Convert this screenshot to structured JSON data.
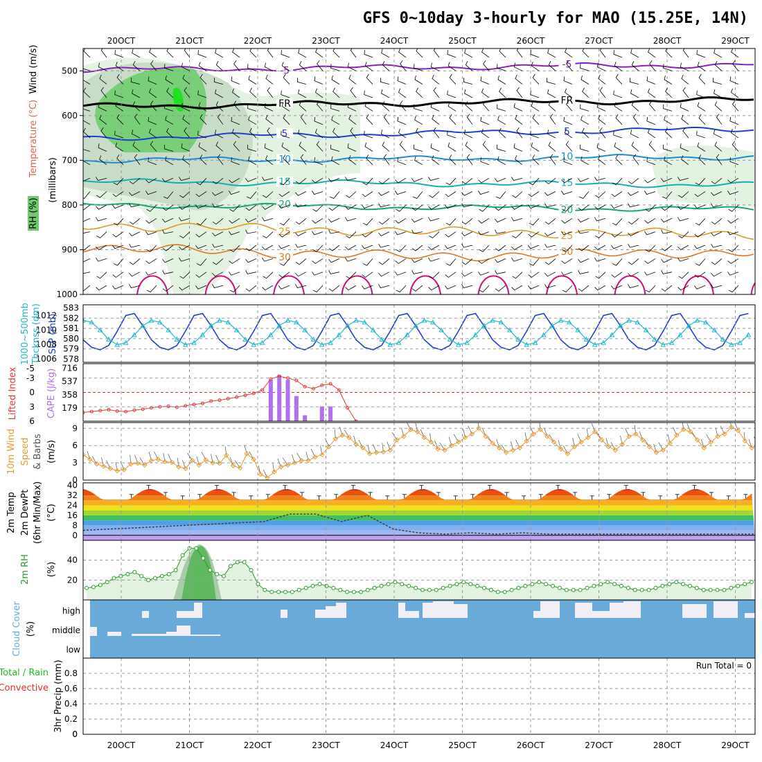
{
  "title": "GFS 0~10day 3-hourly for MAO (15.25E, 14N)",
  "colors": {
    "purple": "#8a1fbf",
    "black": "#000000",
    "blue": "#1f3fd0",
    "lightblue": "#1a8cd8",
    "teal": "#14b0b0",
    "green": "#10a878",
    "orange": "#e09a20",
    "darkorange": "#e07820",
    "magenta": "#d0107a",
    "slp": "#1f3fd0",
    "thk": "#20b8c8",
    "li": "#e03a3a",
    "cape": "#b070f0",
    "wind10": "#e89a30",
    "rh2m": "#2a9a2a",
    "cloud": "#6aaad8",
    "cloudgap": "#f2eef6",
    "precip_rain": "#20c020",
    "precip_conv": "#e03030"
  },
  "chart_data": [
    {
      "type": "contour",
      "panel": "cross-section",
      "x_categories": [
        "20OCT",
        "21OCT",
        "22OCT",
        "23OCT",
        "24OCT",
        "25OCT",
        "26OCT",
        "27OCT",
        "28OCT",
        "29OCT"
      ],
      "ylabel": [
        "RH (%)",
        "Temperature (°C)",
        "Wind (m/s)",
        "(millibars)"
      ],
      "y_ticks": [
        500,
        600,
        700,
        800,
        900,
        1000
      ],
      "ylim": [
        1000,
        450
      ],
      "isotherms": [
        {
          "label": "-5",
          "p": [
            498,
            492,
            486
          ]
        },
        {
          "label": "FR",
          "p": [
            580,
            572,
            565
          ]
        },
        {
          "label": "5",
          "p": [
            650,
            640,
            630
          ]
        },
        {
          "label": "10",
          "p": [
            700,
            697,
            692
          ]
        },
        {
          "label": "15",
          "p": [
            748,
            752,
            755
          ]
        },
        {
          "label": "20",
          "p": [
            800,
            805,
            810
          ]
        },
        {
          "label": "25",
          "p": [
            845,
            860,
            865
          ]
        },
        {
          "label": "30",
          "p": [
            895,
            915,
            905
          ]
        }
      ],
      "rh_legend": "RH (%)"
    },
    {
      "type": "line",
      "panel": "slp-thickness",
      "ylabel_left": [
        "1000~500mb",
        "Thcknss (dm)"
      ],
      "ylabel_right": "SLP (mb)",
      "left_ticks": [
        578,
        579,
        580,
        581,
        582,
        583
      ],
      "right_ticks": [
        1006,
        1008,
        1010,
        1012
      ],
      "series": [
        {
          "name": "SLP",
          "axis": "right"
        },
        {
          "name": "Thickness",
          "axis": "left"
        }
      ]
    },
    {
      "type": "bar",
      "panel": "cape-li",
      "ylabel_left": "Lifted Index",
      "ylabel_right": "CAPE (J/kg)",
      "left_ticks": [
        "-5",
        "-3",
        "0",
        "3",
        "6"
      ],
      "right_ticks": [
        "716",
        "537",
        "358",
        "179"
      ],
      "cape_values": [
        0,
        0,
        0,
        0,
        0,
        0,
        0,
        0,
        0,
        0,
        0,
        0,
        0,
        0,
        0,
        0,
        0,
        0,
        0,
        0,
        0,
        0,
        560,
        620,
        560,
        340,
        80,
        0,
        200,
        200,
        0,
        0,
        0,
        0,
        0,
        0,
        0,
        0,
        0,
        0,
        0,
        0,
        0,
        0,
        0,
        0,
        0,
        0,
        0,
        0,
        0,
        0,
        0,
        0,
        0,
        0,
        0,
        0,
        0,
        0,
        0,
        0,
        0,
        0,
        0,
        0,
        0,
        0,
        0,
        0,
        0,
        0,
        0,
        0,
        0,
        0,
        0,
        0,
        0,
        0,
        0
      ],
      "li_values": [
        4.2,
        4.0,
        3.8,
        3.6,
        3.9,
        4.0,
        3.7,
        3.5,
        3.2,
        3.0,
        2.9,
        3.1,
        2.8,
        2.5,
        2.3,
        1.8,
        1.6,
        1.3,
        1.0,
        0.6,
        0.2,
        -0.5,
        -2.8,
        -3.4,
        -3.0,
        -2.5,
        -1.2,
        -0.8,
        -1.5,
        -1.8,
        -0.5,
        3.2,
        6.0
      ]
    },
    {
      "type": "line",
      "panel": "wind10m",
      "ylabel": [
        "10m Wind",
        "Speed",
        "& Barbs",
        "(m/s)"
      ],
      "y_ticks": [
        0,
        3,
        6,
        9
      ],
      "ylim": [
        0,
        10
      ],
      "values": [
        4.4,
        3.6,
        2.8,
        2.4,
        2.0,
        1.6,
        1.8,
        2.8,
        2.9,
        2.6,
        3.4,
        3.6,
        3.2,
        3.1,
        2.3,
        2.0,
        3.4,
        2.6,
        3.5,
        3.0,
        2.9,
        4.3,
        2.5,
        2.1,
        4.6,
        3.6,
        1.0,
        0.4,
        1.4,
        2.3,
        2.6,
        3.0,
        3.4,
        3.4,
        4.0,
        4.4,
        5.8,
        7.2,
        7.8,
        7.4,
        6.2,
        5.6,
        4.6,
        4.8,
        4.9,
        5.2,
        7.0,
        7.6,
        8.8,
        8.4,
        7.4,
        6.6,
        5.4,
        5.2,
        6.0,
        6.6,
        7.4,
        8.0,
        9.0,
        7.6,
        6.4,
        5.6,
        4.8,
        5.2,
        5.6,
        6.8,
        8.0,
        8.8,
        7.6,
        6.6,
        5.4,
        4.6,
        5.8,
        6.6,
        7.4,
        8.4,
        7.0,
        5.8,
        5.2,
        6.2,
        7.6,
        8.0,
        7.0,
        5.8,
        4.8,
        5.2,
        6.4,
        7.8,
        8.8,
        8.4,
        7.0,
        5.6,
        6.6,
        7.6,
        8.0,
        9.2,
        8.6,
        6.8,
        5.6,
        6.2,
        7.2,
        6.0,
        7.4,
        8.4
      ]
    },
    {
      "type": "area",
      "panel": "temp2m",
      "ylabel": [
        "2m Temp",
        "2m DewPt",
        "(6hr Min/Max)",
        "(°C)"
      ],
      "y_ticks": [
        0,
        8,
        16,
        24,
        32,
        40
      ],
      "ylim": [
        -4,
        42
      ],
      "temp_max": [
        38.5,
        38.6,
        39.0,
        38.8,
        38.7,
        38.6,
        38.5,
        38.6,
        38.4,
        38.3
      ],
      "dewpoint_note": "",
      "dewpt": [
        4,
        5,
        6,
        7,
        8,
        9,
        10,
        11,
        17,
        17,
        11,
        16,
        5,
        2,
        1,
        2,
        1,
        2,
        1,
        1,
        1,
        1,
        1,
        1,
        1,
        1,
        1
      ]
    },
    {
      "type": "area",
      "panel": "rh2m",
      "ylabel": [
        "2m RH",
        "(%)"
      ],
      "y_ticks": [
        20,
        40
      ],
      "ylim": [
        0,
        60
      ],
      "values": [
        12,
        13,
        15,
        18,
        22,
        24,
        26,
        28,
        24,
        20,
        22,
        24,
        26,
        30,
        45,
        52,
        52,
        42,
        30,
        26,
        24,
        34,
        38,
        38,
        30,
        16,
        10,
        8,
        8,
        8,
        8,
        10,
        12,
        14,
        16,
        14,
        12,
        10,
        8,
        8,
        8,
        10,
        12,
        14,
        16,
        18,
        16,
        14,
        12,
        10,
        10,
        10,
        12,
        14,
        16,
        18,
        16,
        14,
        12,
        10,
        8,
        8,
        10,
        12,
        14,
        16,
        18,
        16,
        14,
        12,
        10,
        10,
        10,
        12,
        14,
        16,
        18,
        16,
        14,
        12,
        10,
        10,
        10,
        12,
        14,
        16,
        18,
        16,
        14,
        12,
        10,
        10,
        10,
        10,
        12,
        14,
        16,
        18
      ]
    },
    {
      "type": "heatmap",
      "panel": "cloud-cover",
      "ylabel": [
        "Cloud Cover",
        "(%)"
      ],
      "y_ticks": [
        "high",
        "middle",
        "low"
      ]
    },
    {
      "type": "bar",
      "panel": "precip",
      "ylabel": [
        "Total / Rain",
        "Convective",
        "3hr Precip (mm)"
      ],
      "y_ticks": [
        0,
        0.2,
        0.4,
        0.6,
        0.8
      ],
      "ylim": [
        0,
        1
      ],
      "annotation": "Run Total = 0",
      "values": []
    }
  ],
  "x_tick_labels": [
    "20OCT",
    "21OCT",
    "22OCT",
    "23OCT",
    "24OCT",
    "25OCT",
    "26OCT",
    "27OCT",
    "28OCT",
    "29OCT"
  ]
}
